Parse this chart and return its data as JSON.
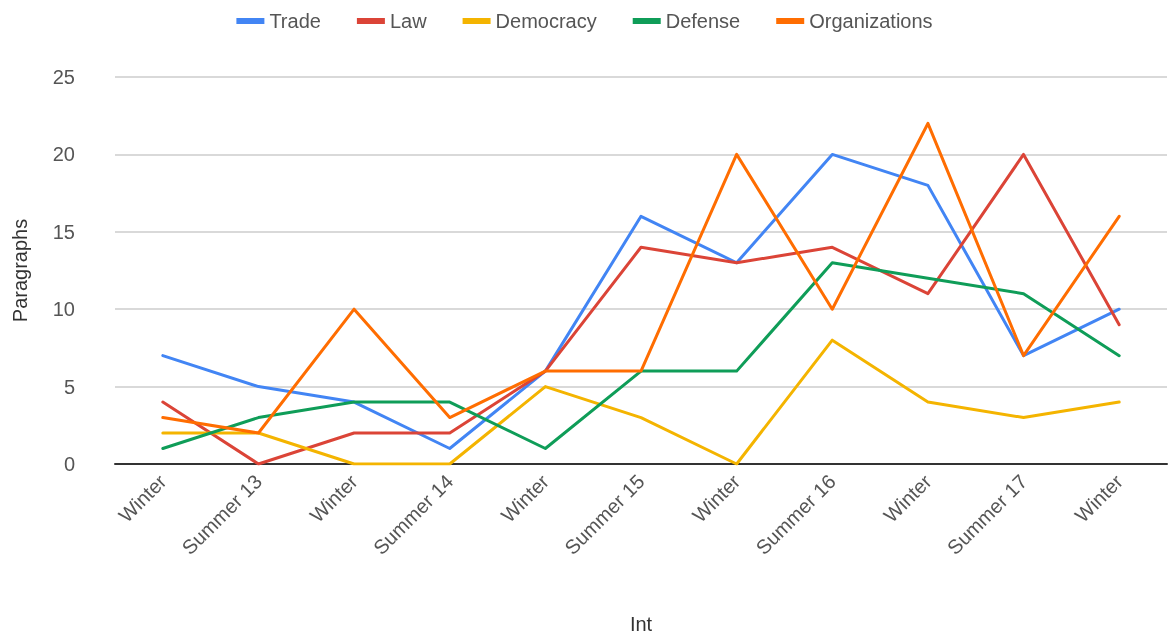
{
  "chart_data": {
    "type": "line",
    "xlabel": "Int",
    "ylabel": "Paragraphs",
    "categories": [
      "Winter",
      "Summer 13",
      "Winter",
      "Summer 14",
      "Winter",
      "Summer 15",
      "Winter",
      "Summer 16",
      "Winter",
      "Summer 17",
      "Winter"
    ],
    "series": [
      {
        "name": "Trade",
        "color": "#4285f4",
        "values": [
          7,
          5,
          4,
          1,
          6,
          16,
          13,
          20,
          18,
          7,
          10
        ]
      },
      {
        "name": "Law",
        "color": "#db4437",
        "values": [
          4,
          0,
          2,
          2,
          6,
          14,
          13,
          14,
          11,
          20,
          9
        ]
      },
      {
        "name": "Democracy",
        "color": "#f4b400",
        "values": [
          2,
          2,
          0,
          0,
          5,
          3,
          0,
          8,
          4,
          3,
          4
        ]
      },
      {
        "name": "Defense",
        "color": "#0f9d58",
        "values": [
          1,
          3,
          4,
          4,
          1,
          6,
          6,
          13,
          12,
          11,
          7
        ]
      },
      {
        "name": "Organizations",
        "color": "#ff6d01",
        "values": [
          3,
          2,
          10,
          3,
          6,
          6,
          20,
          10,
          22,
          7,
          16
        ]
      }
    ],
    "ylim": [
      0,
      25
    ],
    "yticks": [
      0,
      5,
      10,
      15,
      20,
      25
    ],
    "grid": "y",
    "legend": "top",
    "marker": "none",
    "line_style": "solid"
  }
}
